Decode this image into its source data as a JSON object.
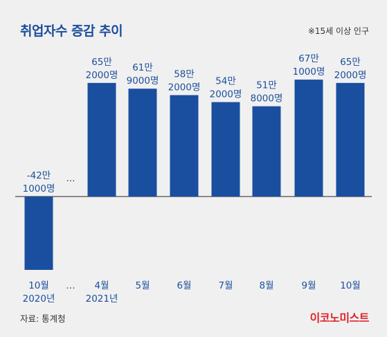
{
  "header": {
    "title": "취업자수 증감 추이",
    "note": "※15세 이상 인구"
  },
  "footer": {
    "source": "자료: 통계청",
    "brand": "이코노미스트"
  },
  "colors": {
    "bar": "#1a4fa0",
    "title": "#1b4e9c",
    "brand": "#e0232b",
    "background": "#f0f0f0"
  },
  "chart_data": {
    "type": "bar",
    "unit": "명",
    "categories": [
      "10월 2020년",
      "…",
      "4월 2021년",
      "5월",
      "6월",
      "7월",
      "8월",
      "9월",
      "10월"
    ],
    "x_tick_labels": [
      [
        "10월",
        "2020년"
      ],
      [
        "…"
      ],
      [
        "4월",
        "2021년"
      ],
      [
        "5월"
      ],
      [
        "6월"
      ],
      [
        "7월"
      ],
      [
        "8월"
      ],
      [
        "9월"
      ],
      [
        "10월"
      ]
    ],
    "values": [
      -421000,
      null,
      652000,
      619000,
      582000,
      542000,
      518000,
      671000,
      652000
    ],
    "data_labels": [
      [
        "-42만",
        "1000명"
      ],
      [
        "…"
      ],
      [
        "65만",
        "2000명"
      ],
      [
        "61만",
        "9000명"
      ],
      [
        "58만",
        "2000명"
      ],
      [
        "54만",
        "2000명"
      ],
      [
        "51만",
        "8000명"
      ],
      [
        "67만",
        "1000명"
      ],
      [
        "65만",
        "2000명"
      ]
    ],
    "title": "취업자수 증감 추이",
    "ylim": [
      -440000,
      700000
    ],
    "grid": false,
    "legend": "none"
  }
}
